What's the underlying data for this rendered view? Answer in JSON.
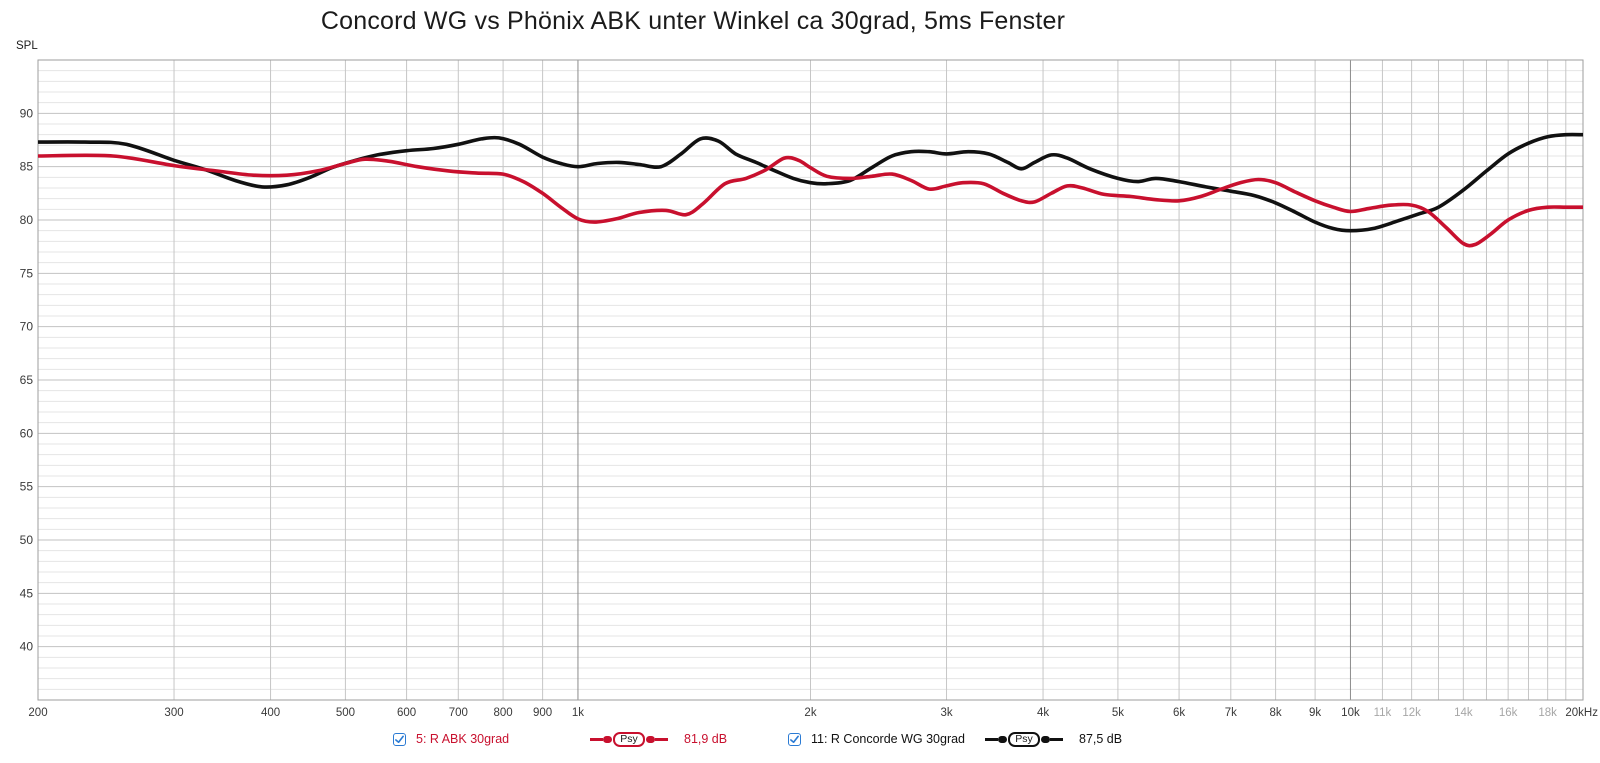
{
  "title": "Concord WG vs Phönix ABK unter Winkel ca 30grad, 5ms Fenster",
  "y_axis_label": "SPL",
  "chart_data": {
    "type": "line",
    "title": "Concord WG vs Phönix ABK unter Winkel ca 30grad, 5ms Fenster",
    "xlabel": "",
    "ylabel": "SPL",
    "x_scale": "log",
    "xlim": [
      200,
      20000
    ],
    "ylim": [
      35,
      95
    ],
    "grid": "on",
    "legend_position": "bottom",
    "y_ticks": [
      90,
      85,
      80,
      75,
      70,
      65,
      60,
      55,
      50,
      45,
      40
    ],
    "y_minor_step_db": 1,
    "x_ticks": [
      {
        "f": 200,
        "label": "200",
        "muted": false
      },
      {
        "f": 300,
        "label": "300",
        "muted": false
      },
      {
        "f": 400,
        "label": "400",
        "muted": false
      },
      {
        "f": 500,
        "label": "500",
        "muted": false
      },
      {
        "f": 600,
        "label": "600",
        "muted": false
      },
      {
        "f": 700,
        "label": "700",
        "muted": false
      },
      {
        "f": 800,
        "label": "800",
        "muted": false
      },
      {
        "f": 900,
        "label": "900",
        "muted": false
      },
      {
        "f": 1000,
        "label": "1k",
        "muted": false
      },
      {
        "f": 2000,
        "label": "2k",
        "muted": false
      },
      {
        "f": 3000,
        "label": "3k",
        "muted": false
      },
      {
        "f": 4000,
        "label": "4k",
        "muted": false
      },
      {
        "f": 5000,
        "label": "5k",
        "muted": false
      },
      {
        "f": 6000,
        "label": "6k",
        "muted": false
      },
      {
        "f": 7000,
        "label": "7k",
        "muted": false
      },
      {
        "f": 8000,
        "label": "8k",
        "muted": false
      },
      {
        "f": 9000,
        "label": "9k",
        "muted": false
      },
      {
        "f": 10000,
        "label": "10k",
        "muted": false
      },
      {
        "f": 11000,
        "label": "11k",
        "muted": true
      },
      {
        "f": 12000,
        "label": "12k",
        "muted": true
      },
      {
        "f": 14000,
        "label": "14k",
        "muted": true
      },
      {
        "f": 16000,
        "label": "16k",
        "muted": true
      },
      {
        "f": 18000,
        "label": "18k",
        "muted": true
      },
      {
        "f": 20000,
        "label": "20kHz",
        "muted": false
      }
    ],
    "grid_x_freqs": [
      300,
      400,
      500,
      600,
      700,
      800,
      900,
      1000,
      2000,
      3000,
      4000,
      5000,
      6000,
      7000,
      8000,
      9000,
      10000,
      11000,
      12000,
      13000,
      14000,
      15000,
      16000,
      17000,
      18000,
      19000,
      20000
    ],
    "grid_x_dark": [
      1000,
      10000
    ],
    "series": [
      {
        "name": "5: R ABK 30grad",
        "color": "#c8102e",
        "smoothing_badge": "Psy",
        "value_label": "81,9 dB",
        "checked": true,
        "points": [
          [
            200,
            86.0
          ],
          [
            250,
            86.0
          ],
          [
            300,
            85.1
          ],
          [
            340,
            84.6
          ],
          [
            380,
            84.2
          ],
          [
            420,
            84.2
          ],
          [
            460,
            84.6
          ],
          [
            500,
            85.3
          ],
          [
            530,
            85.7
          ],
          [
            570,
            85.5
          ],
          [
            620,
            85.0
          ],
          [
            680,
            84.6
          ],
          [
            740,
            84.4
          ],
          [
            800,
            84.3
          ],
          [
            850,
            83.6
          ],
          [
            900,
            82.5
          ],
          [
            950,
            81.2
          ],
          [
            1000,
            80.1
          ],
          [
            1050,
            79.8
          ],
          [
            1120,
            80.1
          ],
          [
            1200,
            80.7
          ],
          [
            1300,
            80.9
          ],
          [
            1380,
            80.5
          ],
          [
            1450,
            81.5
          ],
          [
            1550,
            83.4
          ],
          [
            1650,
            83.9
          ],
          [
            1750,
            84.7
          ],
          [
            1850,
            85.8
          ],
          [
            1930,
            85.6
          ],
          [
            2000,
            84.9
          ],
          [
            2100,
            84.1
          ],
          [
            2250,
            83.9
          ],
          [
            2400,
            84.1
          ],
          [
            2550,
            84.3
          ],
          [
            2700,
            83.7
          ],
          [
            2850,
            82.9
          ],
          [
            3000,
            83.2
          ],
          [
            3150,
            83.5
          ],
          [
            3350,
            83.4
          ],
          [
            3550,
            82.5
          ],
          [
            3750,
            81.8
          ],
          [
            3900,
            81.7
          ],
          [
            4100,
            82.5
          ],
          [
            4300,
            83.2
          ],
          [
            4500,
            83.0
          ],
          [
            4800,
            82.4
          ],
          [
            5200,
            82.2
          ],
          [
            5600,
            81.9
          ],
          [
            6000,
            81.8
          ],
          [
            6400,
            82.2
          ],
          [
            6800,
            82.9
          ],
          [
            7200,
            83.5
          ],
          [
            7600,
            83.8
          ],
          [
            8000,
            83.5
          ],
          [
            8500,
            82.6
          ],
          [
            9000,
            81.8
          ],
          [
            9500,
            81.2
          ],
          [
            10000,
            80.8
          ],
          [
            10600,
            81.1
          ],
          [
            11300,
            81.4
          ],
          [
            12000,
            81.4
          ],
          [
            12600,
            80.8
          ],
          [
            13300,
            79.3
          ],
          [
            14000,
            77.8
          ],
          [
            14500,
            77.7
          ],
          [
            15200,
            78.7
          ],
          [
            16000,
            80.0
          ],
          [
            17000,
            80.9
          ],
          [
            18000,
            81.2
          ],
          [
            19000,
            81.2
          ],
          [
            20000,
            81.2
          ]
        ]
      },
      {
        "name": "11: R Concorde WG 30grad",
        "color": "#111111",
        "smoothing_badge": "Psy",
        "value_label": "87,5 dB",
        "checked": true,
        "points": [
          [
            200,
            87.3
          ],
          [
            230,
            87.3
          ],
          [
            260,
            87.1
          ],
          [
            300,
            85.6
          ],
          [
            330,
            84.7
          ],
          [
            360,
            83.7
          ],
          [
            390,
            83.1
          ],
          [
            420,
            83.3
          ],
          [
            450,
            84.0
          ],
          [
            480,
            84.9
          ],
          [
            510,
            85.5
          ],
          [
            550,
            86.1
          ],
          [
            600,
            86.5
          ],
          [
            650,
            86.7
          ],
          [
            700,
            87.1
          ],
          [
            750,
            87.6
          ],
          [
            790,
            87.7
          ],
          [
            840,
            87.1
          ],
          [
            900,
            85.9
          ],
          [
            950,
            85.3
          ],
          [
            1000,
            85.0
          ],
          [
            1060,
            85.3
          ],
          [
            1130,
            85.4
          ],
          [
            1200,
            85.2
          ],
          [
            1280,
            85.0
          ],
          [
            1360,
            86.2
          ],
          [
            1440,
            87.6
          ],
          [
            1520,
            87.4
          ],
          [
            1600,
            86.2
          ],
          [
            1700,
            85.4
          ],
          [
            1800,
            84.6
          ],
          [
            1900,
            83.9
          ],
          [
            2000,
            83.5
          ],
          [
            2100,
            83.4
          ],
          [
            2250,
            83.7
          ],
          [
            2400,
            84.9
          ],
          [
            2550,
            86.0
          ],
          [
            2700,
            86.4
          ],
          [
            2850,
            86.4
          ],
          [
            3000,
            86.2
          ],
          [
            3200,
            86.4
          ],
          [
            3400,
            86.2
          ],
          [
            3600,
            85.4
          ],
          [
            3750,
            84.8
          ],
          [
            3900,
            85.4
          ],
          [
            4100,
            86.1
          ],
          [
            4300,
            85.8
          ],
          [
            4600,
            84.8
          ],
          [
            5000,
            83.9
          ],
          [
            5300,
            83.6
          ],
          [
            5600,
            83.9
          ],
          [
            6000,
            83.6
          ],
          [
            6500,
            83.1
          ],
          [
            7000,
            82.7
          ],
          [
            7500,
            82.3
          ],
          [
            8000,
            81.6
          ],
          [
            8500,
            80.7
          ],
          [
            9000,
            79.8
          ],
          [
            9500,
            79.2
          ],
          [
            10000,
            79.0
          ],
          [
            10700,
            79.2
          ],
          [
            11500,
            79.9
          ],
          [
            12300,
            80.6
          ],
          [
            13000,
            81.2
          ],
          [
            14000,
            82.8
          ],
          [
            15000,
            84.6
          ],
          [
            16000,
            86.2
          ],
          [
            17000,
            87.2
          ],
          [
            18000,
            87.8
          ],
          [
            19000,
            88.0
          ],
          [
            20000,
            88.0
          ]
        ]
      }
    ]
  },
  "colors": {
    "series_red": "#c8102e",
    "series_black": "#111111",
    "checkbox_blue": "#2b7bd4",
    "grid_minor": "#e4e4e4",
    "grid_major": "#c2c2c2",
    "grid_vertical": "#c6c6c6",
    "grid_vertical_dark": "#8c8c8c",
    "plot_border": "#9e9e9e",
    "tick_muted": "#a6a6a6"
  }
}
